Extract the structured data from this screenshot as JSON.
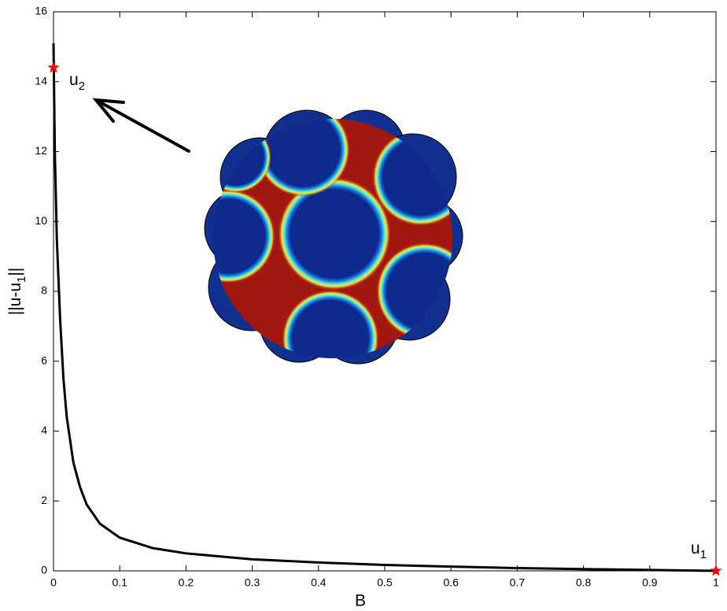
{
  "chart_data": {
    "type": "line",
    "xlabel": "B",
    "ylabel": [
      "||u-u",
      "1",
      "||"
    ],
    "xlim": [
      0,
      1
    ],
    "ylim": [
      0,
      16
    ],
    "xticks": [
      0,
      0.1,
      0.2,
      0.3,
      0.4,
      0.5,
      0.6,
      0.7,
      0.8,
      0.9,
      1
    ],
    "yticks": [
      0,
      2,
      4,
      6,
      8,
      10,
      12,
      14,
      16
    ],
    "series": [
      {
        "color": "#000000",
        "x": [
          0,
          0.002,
          0.005,
          0.01,
          0.015,
          0.02,
          0.03,
          0.04,
          0.05,
          0.07,
          0.1,
          0.15,
          0.2,
          0.3,
          0.4,
          0.5,
          0.6,
          0.7,
          0.8,
          0.9,
          1
        ],
        "values": [
          15.1,
          12,
          9.5,
          7.2,
          5.5,
          4.4,
          3.1,
          2.4,
          1.9,
          1.35,
          0.95,
          0.65,
          0.5,
          0.33,
          0.24,
          0.17,
          0.12,
          0.08,
          0.05,
          0.025,
          0
        ]
      }
    ],
    "markers": {
      "color": "#ff0000",
      "x": [
        0,
        1
      ],
      "values": [
        14.4,
        0
      ]
    },
    "annotations": [
      [
        "u",
        "2"
      ],
      [
        "u",
        "1"
      ]
    ]
  }
}
